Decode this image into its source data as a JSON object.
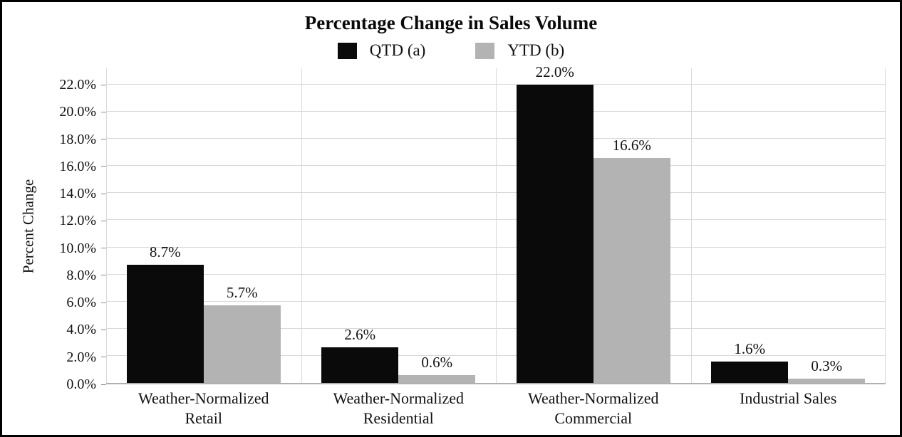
{
  "chart_data": {
    "type": "bar",
    "title": "Percentage Change in Sales Volume",
    "ylabel": "Percent Change",
    "xlabel": "",
    "categories": [
      "Weather-Normalized Retail",
      "Weather-Normalized Residential",
      "Weather-Normalized Commercial",
      "Industrial Sales"
    ],
    "category_label_lines": [
      [
        "Weather-Normalized",
        "Retail"
      ],
      [
        "Weather-Normalized",
        "Residential"
      ],
      [
        "Weather-Normalized",
        "Commercial"
      ],
      [
        "Industrial Sales"
      ]
    ],
    "series": [
      {
        "name": "QTD (a)",
        "color": "#0a0a0a",
        "values": [
          8.7,
          2.6,
          22.0,
          1.6
        ],
        "value_labels": [
          "8.7%",
          "2.6%",
          "22.0%",
          "1.6%"
        ]
      },
      {
        "name": "YTD (b)",
        "color": "#b3b3b3",
        "values": [
          5.7,
          0.6,
          16.6,
          0.3
        ],
        "value_labels": [
          "5.7%",
          "0.6%",
          "16.6%",
          "0.3%"
        ]
      }
    ],
    "ylim": [
      0,
      23.2
    ],
    "yticks": {
      "values": [
        0,
        2,
        4,
        6,
        8,
        10,
        12,
        14,
        16,
        18,
        20,
        22
      ],
      "labels": [
        "0.0%",
        "2.0%",
        "4.0%",
        "6.0%",
        "8.0%",
        "10.0%",
        "12.0%",
        "14.0%",
        "16.0%",
        "18.0%",
        "20.0%",
        "22.0%"
      ]
    },
    "grid": true,
    "legend_position": "top",
    "colors": {
      "gridline": "#d9d9d9",
      "axis_line": "#b0b0b0",
      "frame_border": "#000000",
      "background": "#ffffff"
    }
  }
}
